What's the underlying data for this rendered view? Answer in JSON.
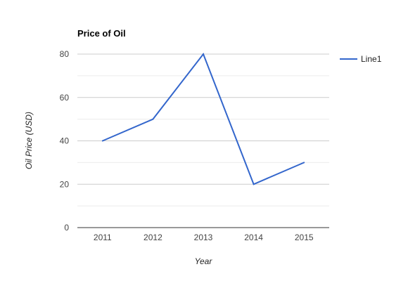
{
  "chart_data": {
    "type": "line",
    "title": "Price of Oil",
    "xlabel": "Year",
    "ylabel": "Oil Price (USD)",
    "categories": [
      "2011",
      "2012",
      "2013",
      "2014",
      "2015"
    ],
    "series": [
      {
        "name": "Line1",
        "values": [
          40,
          50,
          80,
          20,
          30
        ],
        "color": "#3366cc"
      }
    ],
    "ylim": [
      0,
      80
    ],
    "yticks": [
      "0",
      "20",
      "40",
      "60",
      "80"
    ],
    "grid": true,
    "minor_grid": true,
    "legend": "right"
  }
}
